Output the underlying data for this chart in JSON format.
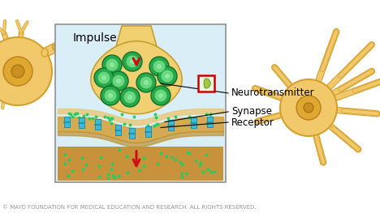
{
  "bg_color": "#ffffff",
  "neuron_color": "#f2c96a",
  "neuron_outline": "#d4a030",
  "axon_color": "#f5d87a",
  "axon_outline": "#d4a030",
  "terminal_color": "#f0d070",
  "terminal_outline": "#c8a030",
  "synapse_bg": "#e0f0f8",
  "membrane_color": "#d4a84a",
  "membrane_dark": "#c09030",
  "receptor_color": "#40b8d8",
  "receptor_outline": "#1890a8",
  "vesicle_outer": "#30b050",
  "vesicle_inner": "#70d888",
  "vesicle_dot": "#208040",
  "nt_dot_color": "#28cc60",
  "arrow_color": "#cc1010",
  "dark_arrow_color": "#880000",
  "inset_bg": "#daeef8",
  "inset_border": "#909090",
  "marker_border": "#cc0000",
  "marker_bg": "#e8f8e0",
  "marker_shape": "#8ab840",
  "label_neurotransmitter": "Neurotransmitter",
  "label_synapse": "Synapse",
  "label_receptor": "Receptor",
  "label_impulse": "Impulse",
  "copyright_text": "© MAYO FOUNDATION FOR MEDICAL EDUCATION AND RESEARCH. ALL RIGHTS RESERVED.",
  "copyright_color": "#999999",
  "copyright_fontsize": 5.0,
  "label_fontsize": 8.5,
  "impulse_fontsize": 10.0
}
